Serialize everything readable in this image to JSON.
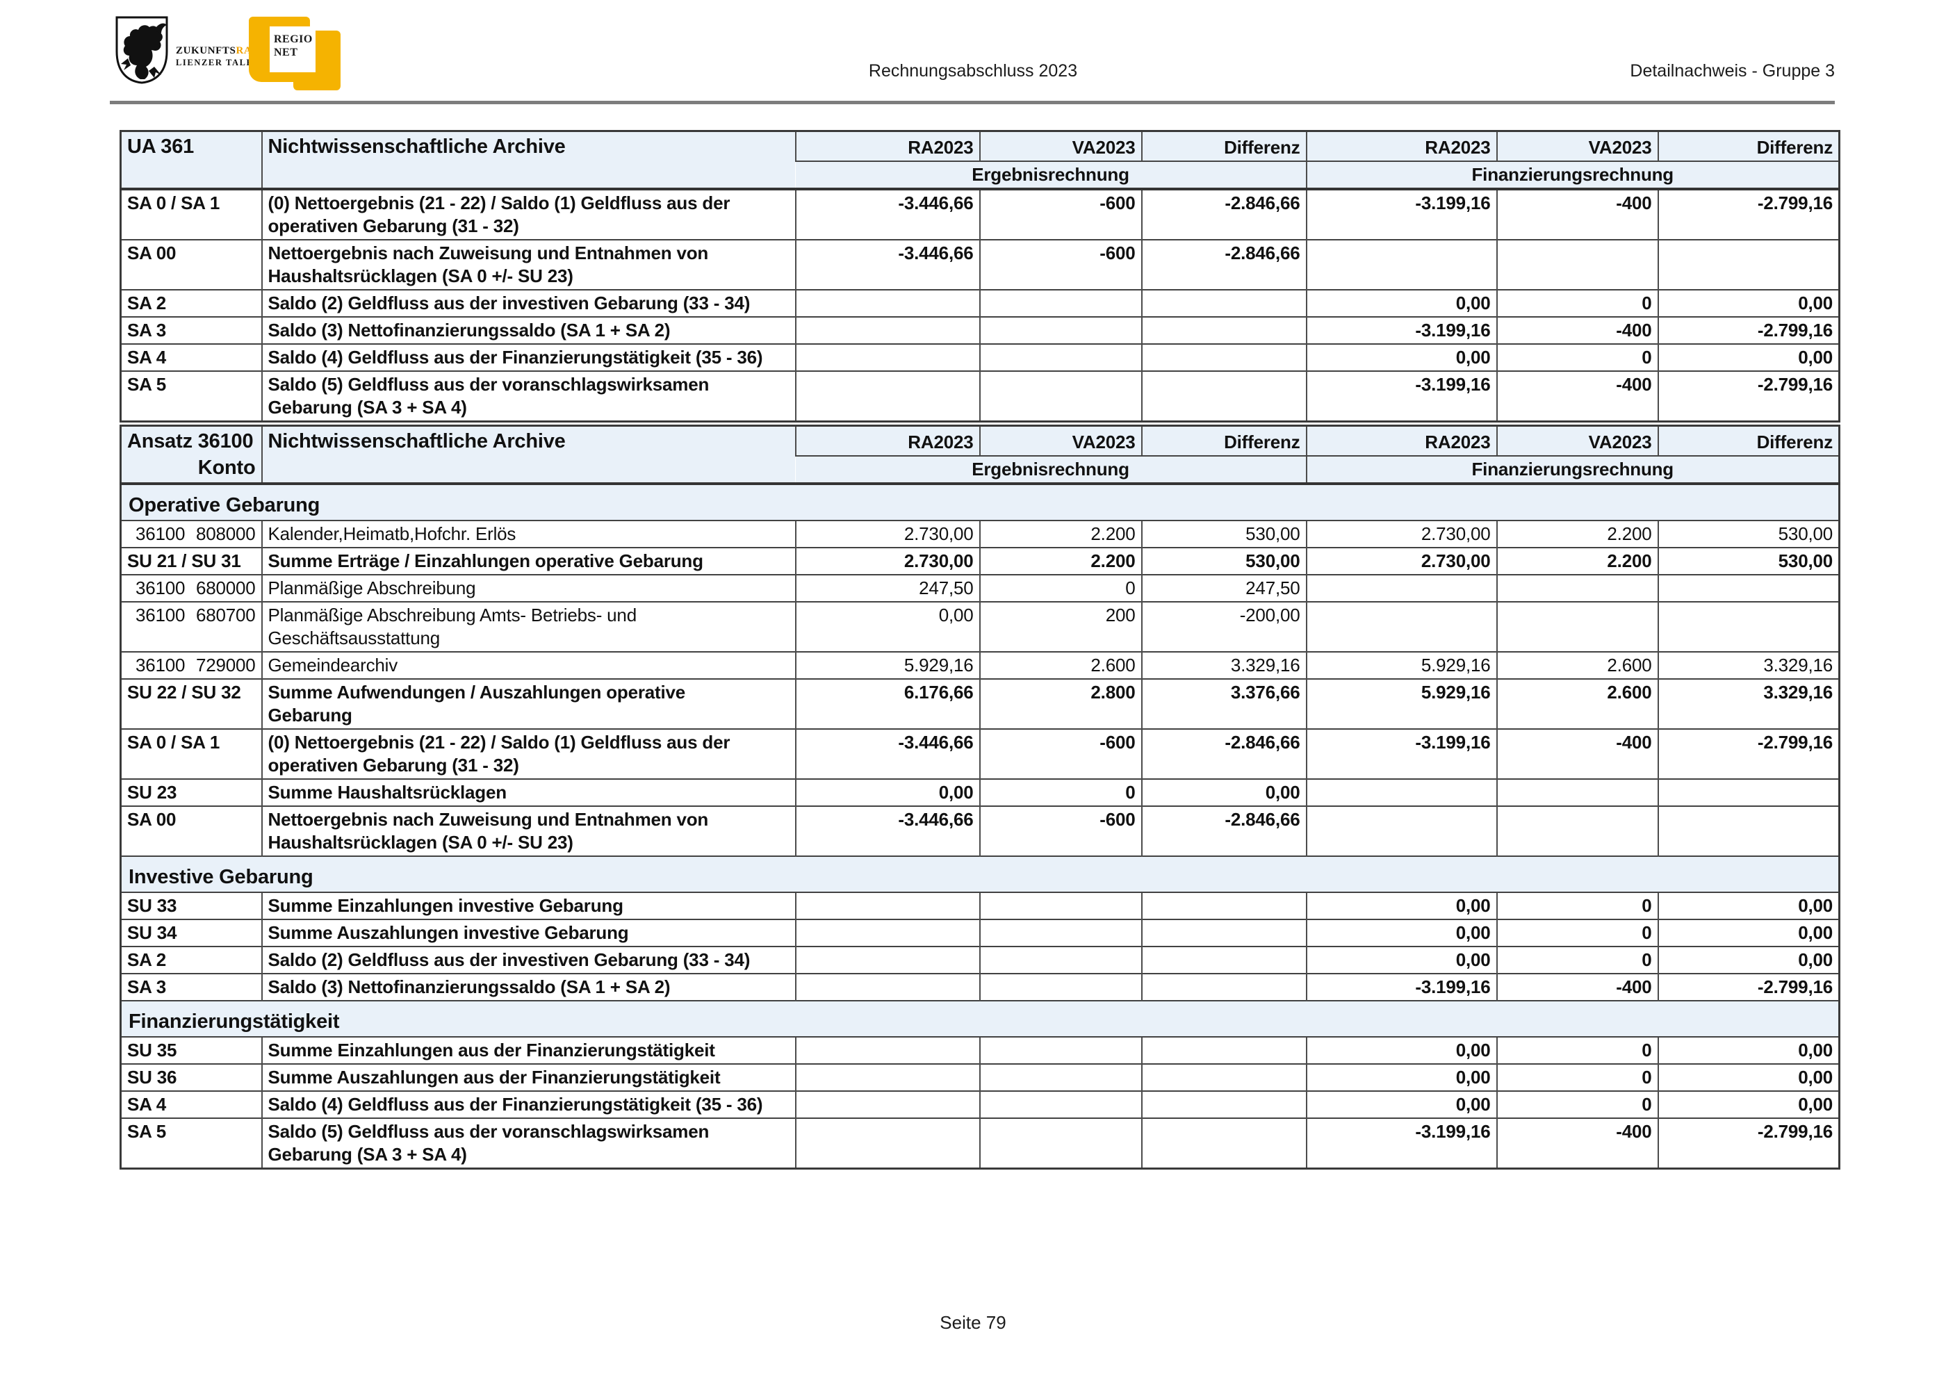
{
  "page": {
    "header": {
      "center_title": "Rechnungsabschluss 2023",
      "right_title": "Detailnachweis - Gruppe 3"
    },
    "footer": {
      "page_label": "Seite 79"
    },
    "logo": {
      "brand_black": "ZUKUNFTS",
      "brand_accent": "RAUM",
      "brand_reg": "®",
      "brand_line2": "LIENZER TALBODEN",
      "regionet_line1": "REGIO",
      "regionet_line2": "NET",
      "accent_color": "#F0A202",
      "regionet_yellow": "#F5B301"
    }
  },
  "columns": {
    "value_headers": [
      "RA2023",
      "VA2023",
      "Differenz",
      "RA2023",
      "VA2023",
      "Differenz"
    ],
    "group_headers": [
      "Ergebnisrechnung",
      "Finanzierungsrechnung"
    ]
  },
  "table1": {
    "code": "UA 361",
    "title": "Nichtwissenschaftliche Archive",
    "rows": [
      {
        "code": "SA 0 / SA 1",
        "label": "(0) Nettoergebnis (21 - 22) / Saldo (1) Geldfluss aus der\noperativen Gebarung (31 - 32)",
        "values": [
          "-3.446,66",
          "-600",
          "-2.846,66",
          "-3.199,16",
          "-400",
          "-2.799,16"
        ]
      },
      {
        "code": "SA 00",
        "label": "Nettoergebnis nach Zuweisung und Entnahmen von\nHaushaltsrücklagen (SA 0 +/- SU 23)",
        "values": [
          "-3.446,66",
          "-600",
          "-2.846,66",
          "",
          "",
          ""
        ]
      },
      {
        "code": "SA 2",
        "label": "Saldo (2) Geldfluss aus der investiven Gebarung (33 - 34)",
        "values": [
          "",
          "",
          "",
          "0,00",
          "0",
          "0,00"
        ]
      },
      {
        "code": "SA 3",
        "label": "Saldo (3) Nettofinanzierungssaldo (SA 1 + SA 2)",
        "values": [
          "",
          "",
          "",
          "-3.199,16",
          "-400",
          "-2.799,16"
        ]
      },
      {
        "code": "SA 4",
        "label": "Saldo (4) Geldfluss aus der Finanzierungstätigkeit (35 - 36)",
        "values": [
          "",
          "",
          "",
          "0,00",
          "0",
          "0,00"
        ]
      },
      {
        "code": "SA 5",
        "label": "Saldo (5) Geldfluss aus der voranschlagswirksamen\nGebarung (SA 3 + SA 4)",
        "values": [
          "",
          "",
          "",
          "-3.199,16",
          "-400",
          "-2.799,16"
        ]
      }
    ]
  },
  "table2": {
    "code_line1": "Ansatz 36100",
    "code_line2": "Konto",
    "title": "Nichtwissenschaftliche Archive",
    "rows": [
      {
        "type": "section",
        "label": "Operative Gebarung"
      },
      {
        "type": "detail",
        "ansatz": "36100",
        "konto": "808000",
        "label": "Kalender,Heimatb,Hofchr. Erlös",
        "values": [
          "2.730,00",
          "2.200",
          "530,00",
          "2.730,00",
          "2.200",
          "530,00"
        ]
      },
      {
        "type": "sum",
        "code": "SU 21 / SU 31",
        "label": "Summe Erträge / Einzahlungen operative Gebarung",
        "values": [
          "2.730,00",
          "2.200",
          "530,00",
          "2.730,00",
          "2.200",
          "530,00"
        ]
      },
      {
        "type": "detail",
        "ansatz": "36100",
        "konto": "680000",
        "label": "Planmäßige Abschreibung",
        "values": [
          "247,50",
          "0",
          "247,50",
          "",
          "",
          ""
        ]
      },
      {
        "type": "detail",
        "ansatz": "36100",
        "konto": "680700",
        "label": "Planmäßige Abschreibung Amts- Betriebs- und\nGeschäftsausstattung",
        "values": [
          "0,00",
          "200",
          "-200,00",
          "",
          "",
          ""
        ]
      },
      {
        "type": "detail",
        "ansatz": "36100",
        "konto": "729000",
        "label": "Gemeindearchiv",
        "values": [
          "5.929,16",
          "2.600",
          "3.329,16",
          "5.929,16",
          "2.600",
          "3.329,16"
        ]
      },
      {
        "type": "sum",
        "code": "SU 22 / SU 32",
        "label": "Summe Aufwendungen / Auszahlungen operative\nGebarung",
        "values": [
          "6.176,66",
          "2.800",
          "3.376,66",
          "5.929,16",
          "2.600",
          "3.329,16"
        ]
      },
      {
        "type": "sum",
        "code": "SA 0 / SA 1",
        "label": "(0) Nettoergebnis (21 - 22) / Saldo (1) Geldfluss aus der\noperativen Gebarung (31 - 32)",
        "values": [
          "-3.446,66",
          "-600",
          "-2.846,66",
          "-3.199,16",
          "-400",
          "-2.799,16"
        ]
      },
      {
        "type": "sum",
        "code": "SU 23",
        "label": "Summe Haushaltsrücklagen",
        "values": [
          "0,00",
          "0",
          "0,00",
          "",
          "",
          ""
        ]
      },
      {
        "type": "sum",
        "code": "SA 00",
        "label": "Nettoergebnis nach Zuweisung und Entnahmen von\nHaushaltsrücklagen (SA 0 +/- SU 23)",
        "values": [
          "-3.446,66",
          "-600",
          "-2.846,66",
          "",
          "",
          ""
        ]
      },
      {
        "type": "section",
        "label": "Investive Gebarung"
      },
      {
        "type": "sum",
        "code": "SU 33",
        "label": "Summe Einzahlungen investive Gebarung",
        "values": [
          "",
          "",
          "",
          "0,00",
          "0",
          "0,00"
        ]
      },
      {
        "type": "sum",
        "code": "SU 34",
        "label": "Summe Auszahlungen investive Gebarung",
        "values": [
          "",
          "",
          "",
          "0,00",
          "0",
          "0,00"
        ]
      },
      {
        "type": "sum",
        "code": "SA 2",
        "label": "Saldo (2) Geldfluss aus der investiven Gebarung (33 - 34)",
        "values": [
          "",
          "",
          "",
          "0,00",
          "0",
          "0,00"
        ]
      },
      {
        "type": "sum",
        "code": "SA 3",
        "label": "Saldo (3) Nettofinanzierungssaldo (SA 1 + SA 2)",
        "values": [
          "",
          "",
          "",
          "-3.199,16",
          "-400",
          "-2.799,16"
        ]
      },
      {
        "type": "section",
        "label": "Finanzierungstätigkeit"
      },
      {
        "type": "sum",
        "code": "SU 35",
        "label": "Summe Einzahlungen aus der Finanzierungstätigkeit",
        "values": [
          "",
          "",
          "",
          "0,00",
          "0",
          "0,00"
        ]
      },
      {
        "type": "sum",
        "code": "SU 36",
        "label": "Summe Auszahlungen aus der Finanzierungstätigkeit",
        "values": [
          "",
          "",
          "",
          "0,00",
          "0",
          "0,00"
        ]
      },
      {
        "type": "sum",
        "code": "SA 4",
        "label": "Saldo (4) Geldfluss aus der Finanzierungstätigkeit (35 - 36)",
        "values": [
          "",
          "",
          "",
          "0,00",
          "0",
          "0,00"
        ]
      },
      {
        "type": "sum",
        "code": "SA 5",
        "label": "Saldo (5) Geldfluss aus der voranschlagswirksamen\nGebarung (SA 3 + SA 4)",
        "values": [
          "",
          "",
          "",
          "-3.199,16",
          "-400",
          "-2.799,16"
        ]
      }
    ]
  }
}
